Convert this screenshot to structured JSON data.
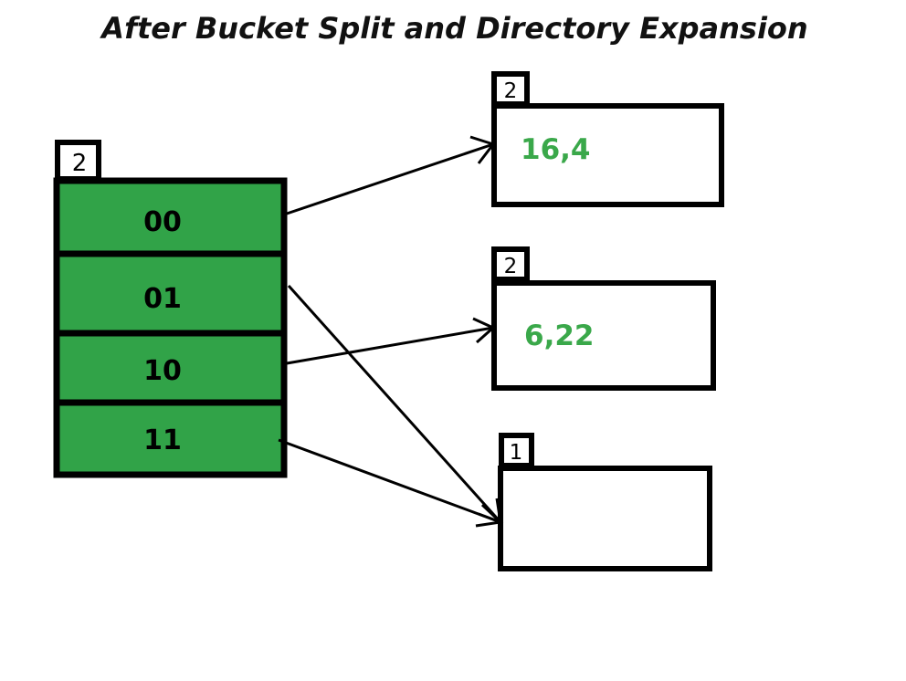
{
  "title": "After Bucket Split and Directory Expansion",
  "colors": {
    "directory_fill": "#31a348",
    "bucket_value_text": "#3aa84a",
    "outline": "#000000"
  },
  "directory": {
    "global_depth": "2",
    "slots": [
      {
        "label": "00",
        "points_to": 0
      },
      {
        "label": "01",
        "points_to": 2
      },
      {
        "label": "10",
        "points_to": 1
      },
      {
        "label": "11",
        "points_to": 2
      }
    ]
  },
  "buckets": [
    {
      "local_depth": "2",
      "contents": "16,4"
    },
    {
      "local_depth": "2",
      "contents": "6,22"
    },
    {
      "local_depth": "1",
      "contents": ""
    }
  ]
}
